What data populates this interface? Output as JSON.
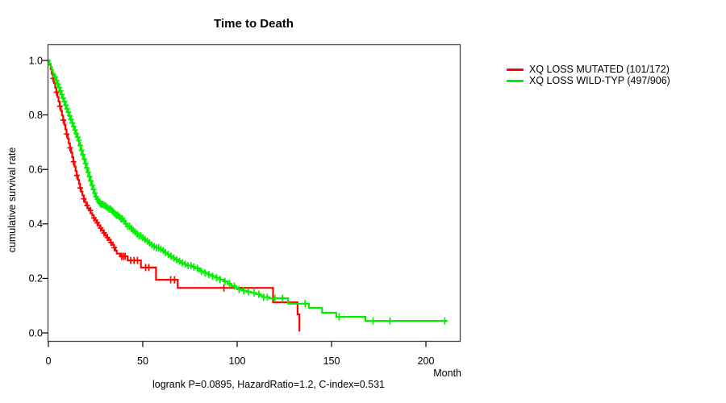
{
  "chart_data": {
    "type": "line",
    "subtype": "kaplan-meier-step",
    "title": "Time to Death",
    "xlabel": "Month",
    "ylabel": "cumulative survival rate",
    "annotation": "logrank P=0.0895, HazardRatio=1.2, C-index=0.531",
    "xlim": [
      0,
      218
    ],
    "ylim": [
      0.0,
      1.0
    ],
    "x_ticks": [
      0,
      50,
      100,
      150,
      200
    ],
    "y_ticks": [
      0.0,
      0.2,
      0.4,
      0.6,
      0.8,
      1.0
    ],
    "grid": false,
    "legend_position": "right-outside",
    "axis_color": "#444444",
    "series": [
      {
        "name": "XQ LOSS MUTATED (101/172)",
        "color": "#ff0000",
        "end_month": 133,
        "steps": [
          [
            0,
            1
          ],
          [
            0.6,
            0.985
          ],
          [
            1.2,
            0.968
          ],
          [
            1.8,
            0.951
          ],
          [
            2.4,
            0.934
          ],
          [
            3,
            0.917
          ],
          [
            3.6,
            0.9
          ],
          [
            4.2,
            0.883
          ],
          [
            4.8,
            0.866
          ],
          [
            5.4,
            0.849
          ],
          [
            6,
            0.832
          ],
          [
            6.6,
            0.815
          ],
          [
            7.2,
            0.798
          ],
          [
            7.8,
            0.781
          ],
          [
            8.4,
            0.764
          ],
          [
            9,
            0.747
          ],
          [
            9.6,
            0.73
          ],
          [
            10.2,
            0.713
          ],
          [
            10.8,
            0.696
          ],
          [
            11.4,
            0.679
          ],
          [
            12,
            0.662
          ],
          [
            12.6,
            0.645
          ],
          [
            13.2,
            0.628
          ],
          [
            13.8,
            0.611
          ],
          [
            14.4,
            0.594
          ],
          [
            15,
            0.578
          ],
          [
            15.6,
            0.562
          ],
          [
            16.2,
            0.547
          ],
          [
            16.8,
            0.532
          ],
          [
            17.4,
            0.518
          ],
          [
            18,
            0.505
          ],
          [
            18.7,
            0.492
          ],
          [
            19.4,
            0.48
          ],
          [
            20.1,
            0.468
          ],
          [
            20.8,
            0.457
          ],
          [
            21.6,
            0.449
          ],
          [
            22.4,
            0.44
          ],
          [
            23.2,
            0.431
          ],
          [
            24,
            0.422
          ],
          [
            24.8,
            0.413
          ],
          [
            25.6,
            0.404
          ],
          [
            26.5,
            0.394
          ],
          [
            27.4,
            0.385
          ],
          [
            28.3,
            0.376
          ],
          [
            29.2,
            0.367
          ],
          [
            30.1,
            0.358
          ],
          [
            31,
            0.35
          ],
          [
            32,
            0.341
          ],
          [
            33,
            0.332
          ],
          [
            34,
            0.323
          ],
          [
            34.8,
            0.313
          ],
          [
            35.5,
            0.302
          ],
          [
            36.2,
            0.291
          ],
          [
            38,
            0.281
          ],
          [
            42,
            0.266
          ],
          [
            49,
            0.24
          ],
          [
            57,
            0.195
          ],
          [
            68.5,
            0.165
          ],
          [
            119,
            0.112
          ],
          [
            132,
            0.068
          ],
          [
            133,
            0.005
          ]
        ],
        "censor_months": [
          2.5,
          4.3,
          6.1,
          7.9,
          9.7,
          11.5,
          13.3,
          15.1,
          16.9,
          18.7,
          20.5,
          22.3,
          24.1,
          25.9,
          27.7,
          29.5,
          31.3,
          33.1,
          34.9,
          38.8,
          39.7,
          40.6,
          43.6,
          45.4,
          47.2,
          51.5,
          53.2,
          64.8,
          66.8,
          93
        ]
      },
      {
        "name": "XQ LOSS WILD-TYP (497/906)",
        "color": "#00ee00",
        "end_month": 211,
        "steps": [
          [
            0,
            1
          ],
          [
            0.6,
            0.988
          ],
          [
            1.2,
            0.976
          ],
          [
            1.8,
            0.964
          ],
          [
            2.4,
            0.952
          ],
          [
            3,
            0.94
          ],
          [
            3.7,
            0.927
          ],
          [
            4.4,
            0.914
          ],
          [
            5.1,
            0.901
          ],
          [
            5.8,
            0.888
          ],
          [
            6.5,
            0.875
          ],
          [
            7.2,
            0.862
          ],
          [
            7.9,
            0.849
          ],
          [
            8.6,
            0.836
          ],
          [
            9.3,
            0.823
          ],
          [
            10,
            0.81
          ],
          [
            10.7,
            0.797
          ],
          [
            11.4,
            0.784
          ],
          [
            12.1,
            0.771
          ],
          [
            12.8,
            0.758
          ],
          [
            13.5,
            0.745
          ],
          [
            14.2,
            0.732
          ],
          [
            14.9,
            0.719
          ],
          [
            15.6,
            0.706
          ],
          [
            16.3,
            0.688
          ],
          [
            17,
            0.67
          ],
          [
            17.7,
            0.654
          ],
          [
            18.4,
            0.638
          ],
          [
            19.1,
            0.622
          ],
          [
            19.8,
            0.606
          ],
          [
            20.5,
            0.59
          ],
          [
            21.2,
            0.574
          ],
          [
            21.9,
            0.558
          ],
          [
            22.6,
            0.542
          ],
          [
            23.3,
            0.527
          ],
          [
            24,
            0.513
          ],
          [
            24.7,
            0.5
          ],
          [
            25.4,
            0.49
          ],
          [
            26.2,
            0.482
          ],
          [
            27,
            0.476
          ],
          [
            28,
            0.472
          ],
          [
            29,
            0.468
          ],
          [
            30,
            0.465
          ],
          [
            31,
            0.46
          ],
          [
            32,
            0.455
          ],
          [
            33,
            0.45
          ],
          [
            34,
            0.444
          ],
          [
            35,
            0.438
          ],
          [
            36,
            0.432
          ],
          [
            37.2,
            0.426
          ],
          [
            38.4,
            0.419
          ],
          [
            39.6,
            0.411
          ],
          [
            40.8,
            0.401
          ],
          [
            42,
            0.391
          ],
          [
            43.2,
            0.383
          ],
          [
            44.4,
            0.376
          ],
          [
            45.6,
            0.37
          ],
          [
            46.8,
            0.363
          ],
          [
            48,
            0.356
          ],
          [
            49.2,
            0.349
          ],
          [
            50.4,
            0.343
          ],
          [
            51.6,
            0.337
          ],
          [
            53,
            0.33
          ],
          [
            54.4,
            0.323
          ],
          [
            55.8,
            0.317
          ],
          [
            57.2,
            0.312
          ],
          [
            58.6,
            0.307
          ],
          [
            60,
            0.302
          ],
          [
            61.5,
            0.295
          ],
          [
            63,
            0.288
          ],
          [
            64.5,
            0.281
          ],
          [
            66,
            0.275
          ],
          [
            67.5,
            0.269
          ],
          [
            69,
            0.263
          ],
          [
            70.5,
            0.257
          ],
          [
            72,
            0.252
          ],
          [
            73.8,
            0.247
          ],
          [
            75.6,
            0.242
          ],
          [
            77.4,
            0.237
          ],
          [
            79.2,
            0.232
          ],
          [
            81,
            0.226
          ],
          [
            83,
            0.22
          ],
          [
            85,
            0.214
          ],
          [
            87,
            0.208
          ],
          [
            89,
            0.202
          ],
          [
            91,
            0.196
          ],
          [
            93,
            0.189
          ],
          [
            95,
            0.18
          ],
          [
            97,
            0.172
          ],
          [
            99,
            0.165
          ],
          [
            101,
            0.159
          ],
          [
            103,
            0.155
          ],
          [
            105,
            0.151
          ],
          [
            107.5,
            0.147
          ],
          [
            110,
            0.142
          ],
          [
            112,
            0.137
          ],
          [
            114,
            0.131
          ],
          [
            117,
            0.127
          ],
          [
            127,
            0.107
          ],
          [
            138,
            0.092
          ],
          [
            145,
            0.074
          ],
          [
            152.5,
            0.059
          ],
          [
            168,
            0.044
          ]
        ],
        "censor_months": [
          3.5,
          4.3,
          5,
          5.7,
          6.4,
          7.1,
          7.8,
          8.5,
          9.2,
          9.9,
          10.6,
          11.3,
          12,
          12.7,
          13.4,
          14.1,
          14.8,
          15.5,
          16.2,
          16.9,
          17.6,
          18.3,
          19,
          19.7,
          20.4,
          21.1,
          21.8,
          22.5,
          23.2,
          23.9,
          24.6,
          25.3,
          26,
          26.7,
          27.4,
          28.1,
          28.8,
          29.6,
          30.4,
          31.2,
          32,
          32.8,
          33.6,
          34.4,
          35.2,
          36,
          36.8,
          37.6,
          38.4,
          39.2,
          40.1,
          41,
          42,
          43,
          44,
          45,
          46,
          47,
          48,
          49,
          50,
          51.2,
          52.4,
          53.6,
          54.8,
          56,
          57.2,
          58.4,
          59.6,
          60.8,
          62,
          63.5,
          65,
          66.5,
          68,
          69.5,
          71,
          72.5,
          74,
          75.5,
          77,
          79,
          81,
          83,
          85,
          87,
          89,
          91,
          93.5,
          96,
          98.5,
          101,
          103.5,
          106,
          109,
          111.5,
          114,
          116,
          120,
          124,
          136,
          154,
          172,
          181,
          210
        ]
      }
    ]
  }
}
